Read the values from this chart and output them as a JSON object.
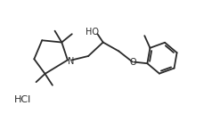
{
  "background_color": "#ffffff",
  "line_color": "#2a2a2a",
  "line_width": 1.3,
  "text_color": "#2a2a2a",
  "hcl_label": "HCl",
  "oh_label": "HO",
  "n_label": "N",
  "o_label": "O",
  "xlim": [
    0,
    10
  ],
  "ylim": [
    0,
    6.2
  ]
}
